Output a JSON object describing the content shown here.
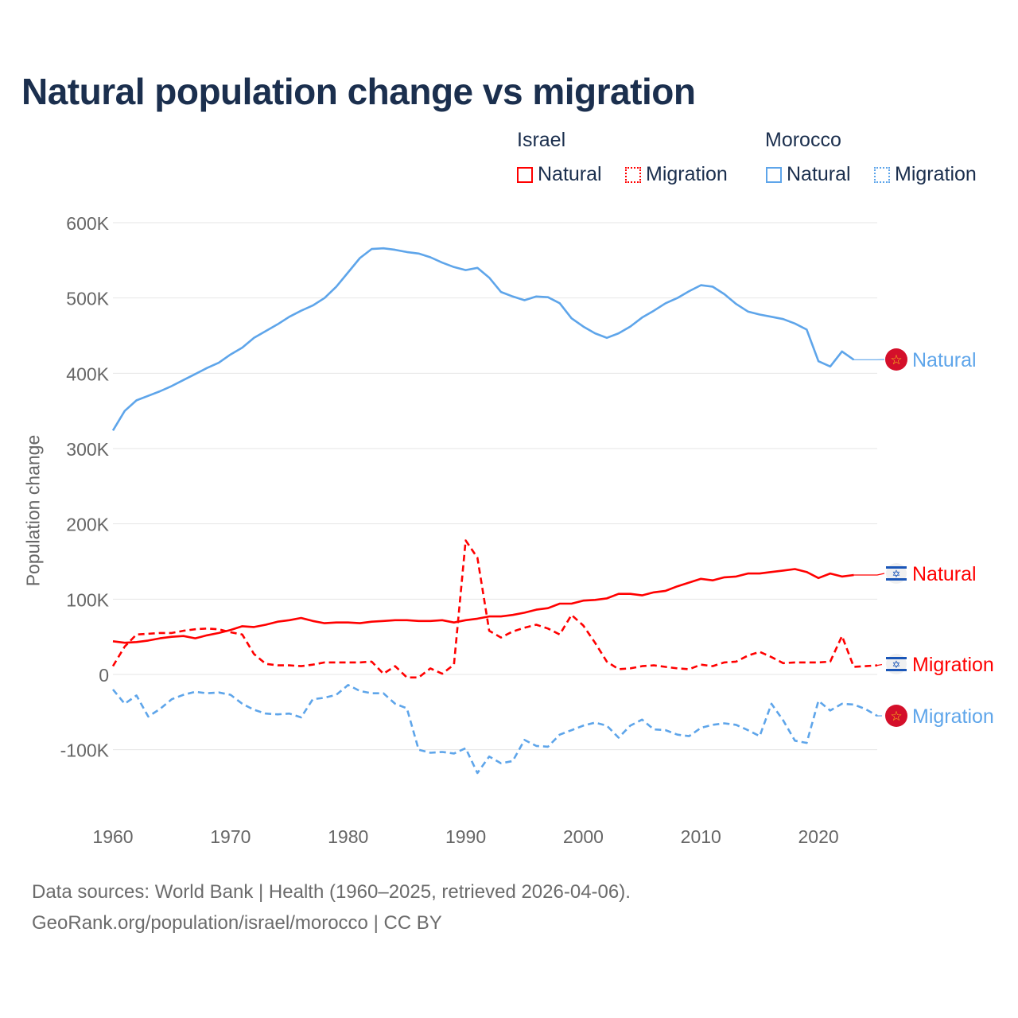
{
  "chart_data": {
    "type": "line",
    "title": "Natural population change vs migration",
    "ylabel": "Population change",
    "xlabel": "",
    "ylim": [
      -150000,
      620000
    ],
    "xlim": [
      1960,
      2025
    ],
    "grid": true,
    "yticks": [
      {
        "value": 600000,
        "label": "600K"
      },
      {
        "value": 500000,
        "label": "500K"
      },
      {
        "value": 400000,
        "label": "400K"
      },
      {
        "value": 300000,
        "label": "300K"
      },
      {
        "value": 200000,
        "label": "200K"
      },
      {
        "value": 100000,
        "label": "100K"
      },
      {
        "value": 0,
        "label": "0"
      },
      {
        "value": -100000,
        "label": "-100K"
      }
    ],
    "xticks": [
      {
        "value": 1960,
        "label": "1960"
      },
      {
        "value": 1970,
        "label": "1970"
      },
      {
        "value": 1980,
        "label": "1980"
      },
      {
        "value": 1990,
        "label": "1990"
      },
      {
        "value": 2000,
        "label": "2000"
      },
      {
        "value": 2010,
        "label": "2010"
      },
      {
        "value": 2020,
        "label": "2020"
      }
    ],
    "x_start": 1960,
    "legend": {
      "placement": "top-right",
      "groups": [
        {
          "country": "Israel",
          "items": [
            "Natural",
            "Migration"
          ]
        },
        {
          "country": "Morocco",
          "items": [
            "Natural",
            "Migration"
          ]
        }
      ]
    },
    "series": [
      {
        "name": "Morocco Natural",
        "country": "Morocco",
        "kind": "Natural",
        "label": "Natural",
        "color": "#5ea5ea",
        "dash": false,
        "flag": "morocco",
        "values": [
          324,
          350,
          364,
          370,
          376,
          383,
          391,
          399,
          407,
          414,
          425,
          434,
          447,
          456,
          465,
          475,
          483,
          490,
          500,
          515,
          534,
          553,
          565,
          566,
          564,
          561,
          559,
          554,
          547,
          541,
          537,
          540,
          527,
          508,
          502,
          497,
          502,
          501,
          493,
          473,
          462,
          453,
          447,
          453,
          462,
          474,
          483,
          493,
          500,
          509,
          517,
          515,
          505,
          492,
          482,
          478,
          475,
          472,
          466,
          458,
          416,
          409,
          429,
          418,
          418,
          418
        ]
      },
      {
        "name": "Israel Natural",
        "country": "Israel",
        "kind": "Natural",
        "label": "Natural",
        "color": "#ff0000",
        "dash": false,
        "flag": "israel",
        "values": [
          44,
          42,
          43,
          45,
          48,
          50,
          51,
          48,
          52,
          55,
          59,
          64,
          63,
          66,
          70,
          72,
          75,
          71,
          68,
          69,
          69,
          68,
          70,
          71,
          72,
          72,
          71,
          71,
          72,
          69,
          72,
          74,
          77,
          77,
          79,
          82,
          86,
          88,
          94,
          94,
          98,
          99,
          101,
          107,
          107,
          105,
          109,
          111,
          117,
          122,
          127,
          125,
          129,
          130,
          134,
          134,
          136,
          138,
          140,
          136,
          128,
          134,
          130,
          132,
          132,
          132
        ]
      },
      {
        "name": "Israel Migration",
        "country": "Israel",
        "kind": "Migration",
        "label": "Migration",
        "color": "#ff0000",
        "dash": true,
        "flag": "israel",
        "values": [
          11,
          37,
          53,
          54,
          55,
          55,
          58,
          60,
          61,
          60,
          56,
          53,
          27,
          14,
          12,
          12,
          11,
          13,
          16,
          16,
          16,
          16,
          17,
          1,
          11,
          -4,
          -4,
          8,
          1,
          13,
          178,
          155,
          58,
          49,
          57,
          62,
          66,
          61,
          53,
          79,
          65,
          42,
          17,
          7,
          8,
          11,
          12,
          10,
          8,
          7,
          13,
          11,
          16,
          17,
          25,
          30,
          23,
          15,
          16,
          16,
          16,
          17,
          51,
          10,
          11,
          12
        ]
      },
      {
        "name": "Morocco Migration",
        "country": "Morocco",
        "kind": "Migration",
        "label": "Migration",
        "color": "#5ea5ea",
        "dash": true,
        "flag": "morocco",
        "values": [
          -20,
          -39,
          -28,
          -56,
          -46,
          -33,
          -27,
          -23,
          -25,
          -24,
          -27,
          -39,
          -47,
          -52,
          -53,
          -52,
          -57,
          -33,
          -31,
          -27,
          -14,
          -22,
          -25,
          -25,
          -39,
          -45,
          -100,
          -104,
          -103,
          -105,
          -98,
          -131,
          -109,
          -118,
          -115,
          -87,
          -95,
          -96,
          -80,
          -74,
          -68,
          -64,
          -68,
          -84,
          -68,
          -60,
          -73,
          -74,
          -80,
          -82,
          -71,
          -67,
          -65,
          -67,
          -74,
          -82,
          -39,
          -61,
          -88,
          -91,
          -35,
          -48,
          -39,
          -40,
          -46,
          -55
        ]
      }
    ],
    "units": "thousands"
  },
  "footer": {
    "line1": "Data sources: World Bank | Health (1960–2025, retrieved 2026-04-06).",
    "line2": "GeoRank.org/population/israel/morocco | CC BY"
  }
}
